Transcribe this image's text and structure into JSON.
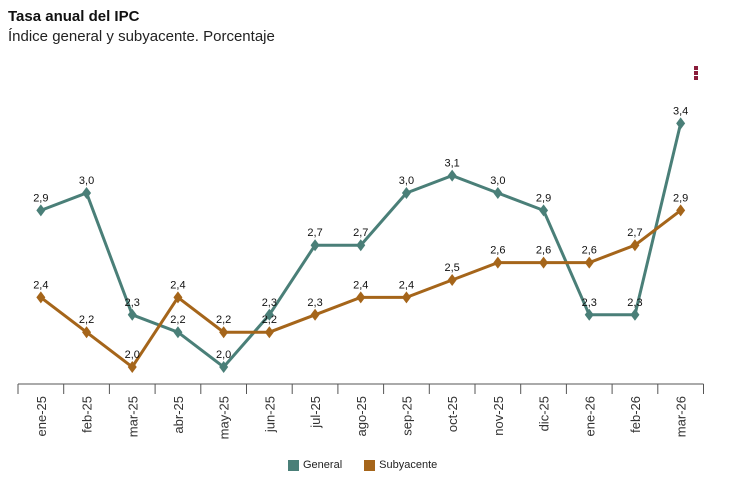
{
  "chart_data": {
    "type": "line",
    "title": "Tasa anual del IPC",
    "subtitle": "Índice general y subyacente. Porcentaje",
    "categories": [
      "ene-25",
      "feb-25",
      "mar-25",
      "abr-25",
      "may-25",
      "jun-25",
      "jul-25",
      "ago-25",
      "sep-25",
      "oct-25",
      "nov-25",
      "dic-25",
      "ene-26",
      "feb-26",
      "mar-26"
    ],
    "series": [
      {
        "name": "General",
        "color": "#4a7f78",
        "values": [
          2.9,
          3.0,
          2.3,
          2.2,
          2.0,
          2.3,
          2.7,
          2.7,
          3.0,
          3.1,
          3.0,
          2.9,
          2.3,
          2.3,
          3.4
        ]
      },
      {
        "name": "Subyacente",
        "color": "#a5651a",
        "values": [
          2.4,
          2.2,
          2.0,
          2.4,
          2.2,
          2.2,
          2.3,
          2.4,
          2.4,
          2.5,
          2.6,
          2.6,
          2.6,
          2.7,
          2.9
        ]
      }
    ],
    "ylim": [
      1.91,
      3.5
    ],
    "grid": false,
    "data_labels": true,
    "legend": "bottom",
    "marker": "diamond"
  },
  "menu_icon": "kebab-menu-icon"
}
